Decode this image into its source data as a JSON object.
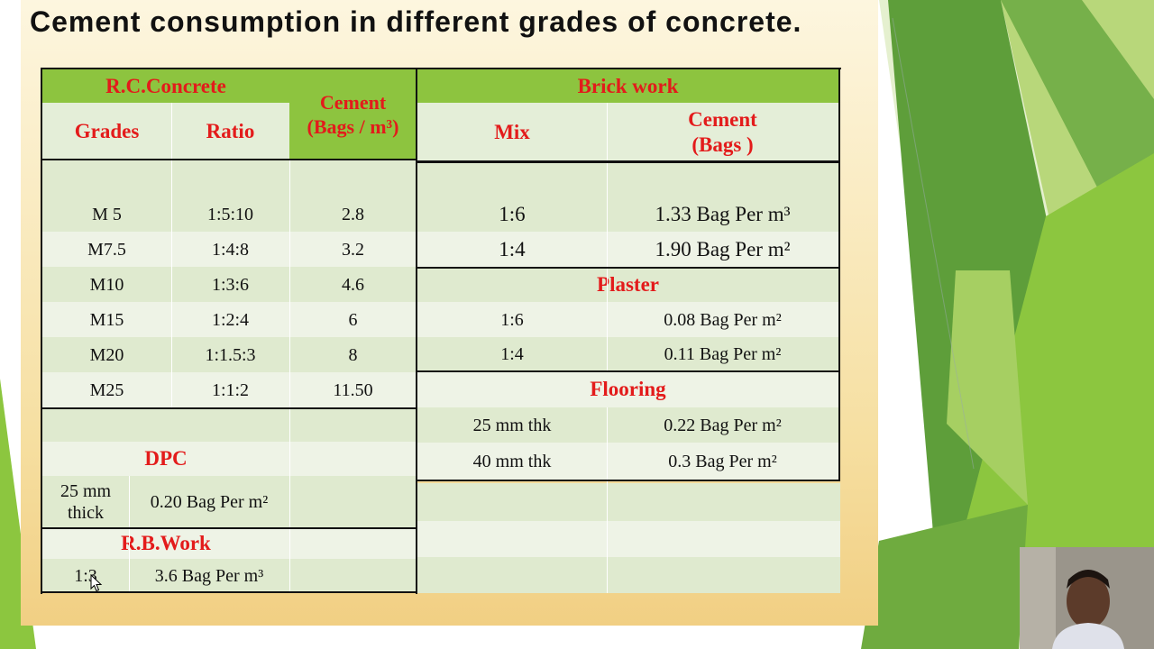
{
  "slide": {
    "title": "Cement consumption in different grades of concrete."
  },
  "rcc": {
    "group_label": "R.C.Concrete",
    "col_grades": "Grades",
    "col_ratio": "Ratio",
    "col_cement_line1": "Cement",
    "col_cement_line2": "(Bags / m³)",
    "rows": [
      {
        "grade": "M 5",
        "ratio": "1:5:10",
        "cement": "2.8"
      },
      {
        "grade": "M7.5",
        "ratio": "1:4:8",
        "cement": "3.2"
      },
      {
        "grade": "M10",
        "ratio": "1:3:6",
        "cement": "4.6"
      },
      {
        "grade": "M15",
        "ratio": "1:2:4",
        "cement": "6"
      },
      {
        "grade": "M20",
        "ratio": "1:1.5:3",
        "cement": "8"
      },
      {
        "grade": "M25",
        "ratio": "1:1:2",
        "cement": "11.50"
      }
    ]
  },
  "dpc": {
    "heading": "DPC",
    "mix_line1": "25 mm",
    "mix_line2": "thick",
    "cement": "0.20  Bag  Per  m²"
  },
  "rb_work": {
    "heading": "R.B.Work",
    "mix": "1:3",
    "cement": "3.6  Bag  Per  m³"
  },
  "brick_work": {
    "heading": "Brick work",
    "col_mix": "Mix",
    "col_cement_line1": "Cement",
    "col_cement_line2": "(Bags )",
    "rows": [
      {
        "mix": "1:6",
        "cement": "1.33  Bag  Per  m³"
      },
      {
        "mix": "1:4",
        "cement": "1.90  Bag  Per  m²"
      }
    ]
  },
  "plaster": {
    "heading": "Plaster",
    "rows": [
      {
        "mix": "1:6",
        "cement": "0.08 Bag  Per  m²"
      },
      {
        "mix": "1:4",
        "cement": "0.11 Bag  Per  m²"
      }
    ]
  },
  "flooring": {
    "heading": "Flooring",
    "rows": [
      {
        "mix": "25 mm thk",
        "cement": "0.22  Bag  Per  m²"
      },
      {
        "mix": "40 mm thk",
        "cement": "0.3  Bag  Per  m²"
      }
    ]
  },
  "colors": {
    "header_green": "#8dc43f",
    "heading_red": "#e31b1b",
    "slide_bg": "#f6dfa1",
    "deco_green": "#8cc63f"
  }
}
